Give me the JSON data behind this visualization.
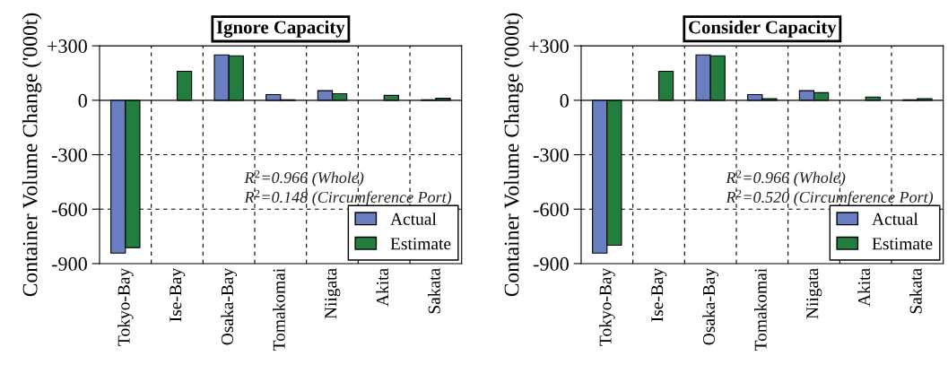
{
  "chart_data": [
    {
      "type": "bar",
      "title": "Ignore Capacity",
      "ylabel": "Container Volume Change ('000t)",
      "categories": [
        "Tokyo-Bay",
        "Ise-Bay",
        "Osaka-Bay",
        "Tomakomai",
        "Niigata",
        "Akita",
        "Sakata"
      ],
      "series": [
        {
          "name": "Actual",
          "color": "#6a7fc1",
          "values": [
            -842,
            null,
            250,
            31,
            53,
            0,
            3
          ]
        },
        {
          "name": "Estimate",
          "color": "#237d3e",
          "values": [
            -812,
            160,
            245,
            3,
            36,
            27,
            11
          ]
        }
      ],
      "ylim": [
        -900,
        300
      ],
      "yticks": [
        {
          "value": 300,
          "label": "+300"
        },
        0,
        {
          "value": -300,
          "label": "-300"
        },
        {
          "value": -600,
          "label": "-600"
        },
        {
          "value": -900,
          "label": "-900"
        }
      ],
      "grid": true,
      "legend": "bottom right",
      "annotations": [
        "R$^{2}$=0.966 (Whole)",
        "R$^{2}$=0.148 (Circumference Port)"
      ]
    },
    {
      "type": "bar",
      "title": "Consider Capacity",
      "ylabel": "Container Volume Change ('000t)",
      "categories": [
        "Tokyo-Bay",
        "Ise-Bay",
        "Osaka-Bay",
        "Tomakomai",
        "Niigata",
        "Akita",
        "Sakata"
      ],
      "series": [
        {
          "name": "Actual",
          "color": "#6a7fc1",
          "values": [
            -842,
            null,
            250,
            31,
            53,
            0,
            3
          ]
        },
        {
          "name": "Estimate",
          "color": "#237d3e",
          "values": [
            -799,
            160,
            245,
            9,
            42,
            18,
            9
          ]
        }
      ],
      "ylim": [
        -900,
        300
      ],
      "yticks": [
        {
          "value": 300,
          "label": "+300"
        },
        0,
        {
          "value": -300,
          "label": "-300"
        },
        {
          "value": -600,
          "label": "-600"
        },
        {
          "value": -900,
          "label": "-900"
        }
      ],
      "grid": true,
      "legend": "bottom right",
      "annotations": [
        "R$^{2}$=0.966 (Whole)",
        "R$^{2}$=0.520 (Circumference Port)"
      ]
    }
  ]
}
